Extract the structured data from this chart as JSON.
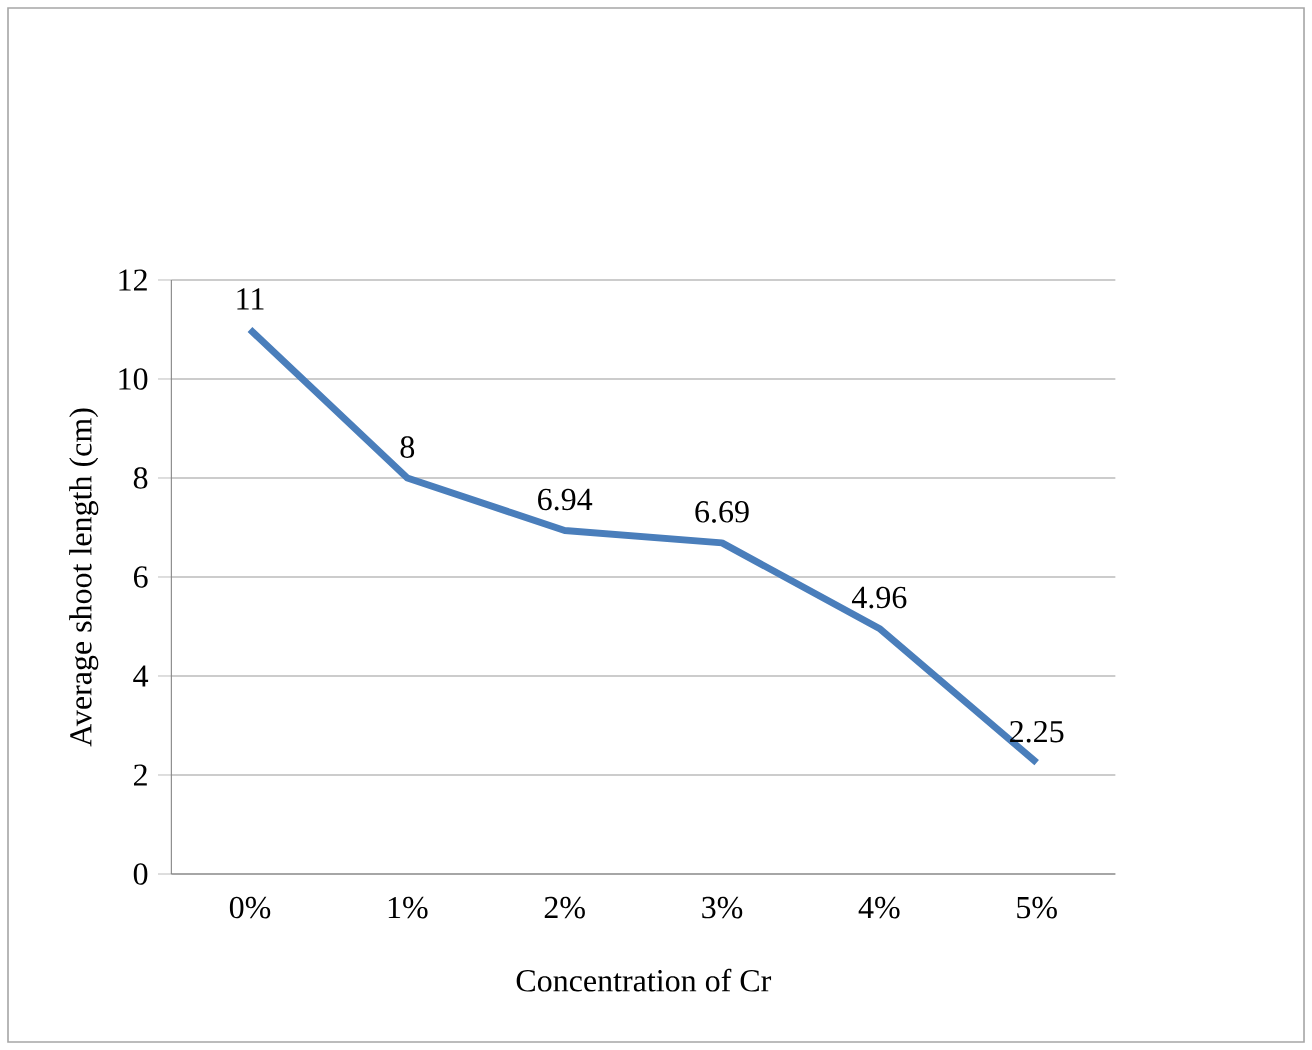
{
  "chart_data": {
    "type": "line",
    "xlabel": "Concentration of Cr",
    "ylabel": "Average shoot length (cm)",
    "categories": [
      "0%",
      "1%",
      "2%",
      "3%",
      "4%",
      "5%"
    ],
    "values": [
      11,
      8,
      6.94,
      6.69,
      4.96,
      2.25
    ],
    "color": "#4a7ebb",
    "ylim": [
      0,
      12
    ],
    "yticks": [
      0,
      2,
      4,
      6,
      8,
      10,
      12
    ],
    "grid": "y",
    "data_labels": true,
    "marker": "none",
    "line_style": "solid"
  }
}
